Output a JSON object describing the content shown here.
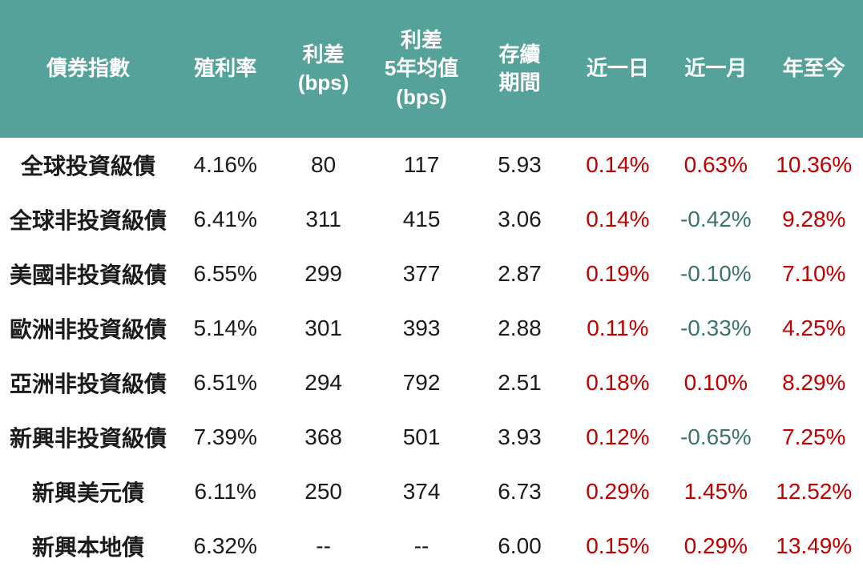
{
  "colors": {
    "header_bg": "#55A29A",
    "header_text": "#FFFFFF",
    "body_text": "#1B1B1B",
    "positive_change": "#C00000",
    "negative_change": "#3C736D",
    "page_bg": "#FFFFFF"
  },
  "chart_data": {
    "type": "table",
    "title": "",
    "columns": [
      "債券指數",
      "殖利率",
      "利差(bps)",
      "利差5年均值(bps)",
      "存續期間",
      "近一日",
      "近一月",
      "年至今"
    ],
    "header_lines": [
      [
        "債券指數"
      ],
      [
        "殖利率"
      ],
      [
        "利差",
        "(bps)"
      ],
      [
        "利差",
        "5年均值",
        "(bps)"
      ],
      [
        "存續",
        "期間"
      ],
      [
        "近一日"
      ],
      [
        "近一月"
      ],
      [
        "年至今"
      ]
    ],
    "change_columns": [
      5,
      6,
      7
    ],
    "rows": [
      [
        "全球投資級債",
        "4.16%",
        "80",
        "117",
        "5.93",
        "0.14%",
        "0.63%",
        "10.36%"
      ],
      [
        "全球非投資級債",
        "6.41%",
        "311",
        "415",
        "3.06",
        "0.14%",
        "-0.42%",
        "9.28%"
      ],
      [
        "美國非投資級債",
        "6.55%",
        "299",
        "377",
        "2.87",
        "0.19%",
        "-0.10%",
        "7.10%"
      ],
      [
        "歐洲非投資級債",
        "5.14%",
        "301",
        "393",
        "2.88",
        "0.11%",
        "-0.33%",
        "4.25%"
      ],
      [
        "亞洲非投資級債",
        "6.51%",
        "294",
        "792",
        "2.51",
        "0.18%",
        "0.10%",
        "8.29%"
      ],
      [
        "新興非投資級債",
        "7.39%",
        "368",
        "501",
        "3.93",
        "0.12%",
        "-0.65%",
        "7.25%"
      ],
      [
        "新興美元債",
        "6.11%",
        "250",
        "374",
        "6.73",
        "0.29%",
        "1.45%",
        "12.52%"
      ],
      [
        "新興本地債",
        "6.32%",
        "--",
        "--",
        "6.00",
        "0.15%",
        "0.29%",
        "13.49%"
      ]
    ]
  }
}
